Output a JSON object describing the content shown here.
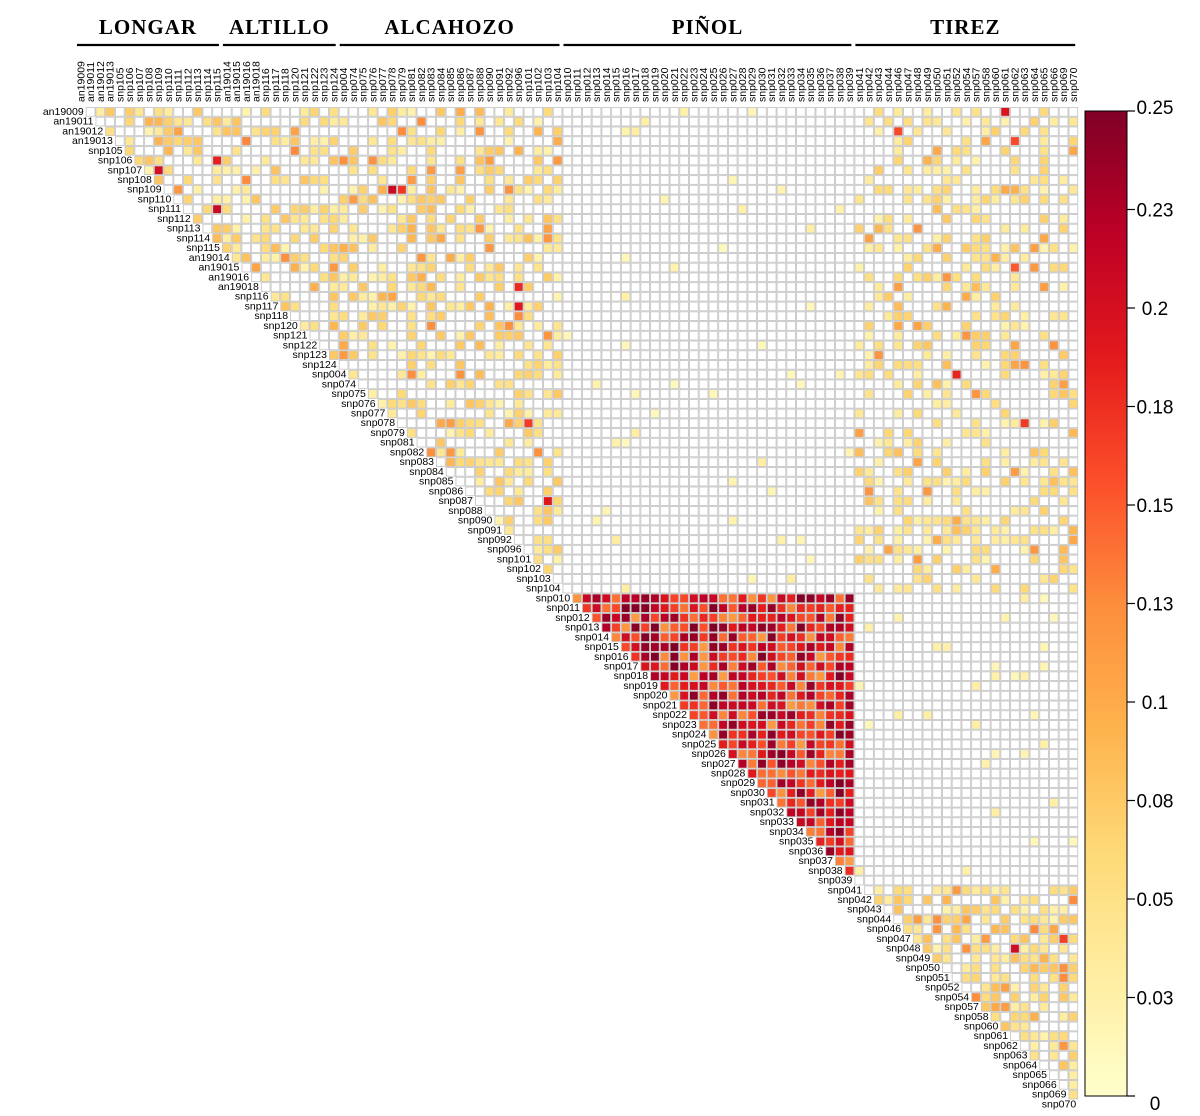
{
  "chart_data": {
    "type": "heatmap",
    "title": "",
    "xlabel": "",
    "ylabel": "",
    "loci": [
      "an19009",
      "an19011",
      "an19012",
      "an19013",
      "snp105",
      "snp106",
      "snp107",
      "snp108",
      "snp109",
      "snp110",
      "snp111",
      "snp112",
      "snp113",
      "snp114",
      "snp115",
      "an19014",
      "an19015",
      "an19016",
      "an19018",
      "snp116",
      "snp117",
      "snp118",
      "snp120",
      "snp121",
      "snp122",
      "snp123",
      "snp124",
      "snp004",
      "snp074",
      "snp075",
      "snp076",
      "snp077",
      "snp078",
      "snp079",
      "snp081",
      "snp082",
      "snp083",
      "snp084",
      "snp085",
      "snp086",
      "snp087",
      "snp088",
      "snp090",
      "snp091",
      "snp092",
      "snp096",
      "snp101",
      "snp102",
      "snp103",
      "snp104",
      "snp010",
      "snp011",
      "snp012",
      "snp013",
      "snp014",
      "snp015",
      "snp016",
      "snp017",
      "snp018",
      "snp019",
      "snp020",
      "snp021",
      "snp022",
      "snp023",
      "snp024",
      "snp025",
      "snp026",
      "snp027",
      "snp028",
      "snp029",
      "snp030",
      "snp031",
      "snp032",
      "snp033",
      "snp034",
      "snp035",
      "snp036",
      "snp037",
      "snp038",
      "snp039",
      "snp041",
      "snp042",
      "snp043",
      "snp044",
      "snp046",
      "snp047",
      "snp048",
      "snp049",
      "snp050",
      "snp051",
      "snp052",
      "snp054",
      "snp057",
      "snp058",
      "snp060",
      "snp061",
      "snp062",
      "snp063",
      "snp064",
      "snp065",
      "snp066",
      "snp069",
      "snp070"
    ],
    "groups": [
      {
        "name": "LONGAR",
        "start": 0,
        "end": 14
      },
      {
        "name": "ALTILLO",
        "start": 15,
        "end": 26
      },
      {
        "name": "ALCAHOZO",
        "start": 27,
        "end": 49
      },
      {
        "name": "PIÑOL",
        "start": 50,
        "end": 79
      },
      {
        "name": "TIREZ",
        "start": 80,
        "end": 102
      }
    ],
    "value_range": [
      0,
      0.25
    ],
    "colorbar_ticks": [
      "0",
      "0.03",
      "0.05",
      "0.08",
      "0.1",
      "0.13",
      "0.15",
      "0.18",
      "0.2",
      "0.23",
      "0.25"
    ],
    "colorbar_colors": [
      "#ffffcc",
      "#ffeda0",
      "#fed976",
      "#feb24c",
      "#fd8d3c",
      "#fc4e2a",
      "#e31a1c",
      "#bd0026",
      "#800026"
    ],
    "empty_cell_color": "#ffffff",
    "grid_color": "#c8c8c8",
    "block_means": {
      "LONGAR-ALTILLO-ALCAHOZO": {
        "mean": 0.035,
        "max": 0.2
      },
      "PIÑOL": {
        "mean": 0.17,
        "max": 0.25
      },
      "TIREZ": {
        "mean": 0.05,
        "max": 0.2
      },
      "LONGAR-ALCAHOZO x TIREZ": {
        "mean": 0.028,
        "max": 0.19
      },
      "PIÑOL x others": {
        "mean": 0.003,
        "max": 0.03
      }
    }
  }
}
